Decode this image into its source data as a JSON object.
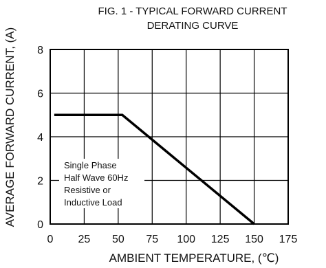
{
  "chart_data": {
    "type": "line",
    "title_lines": [
      "FIG. 1 - TYPICAL FORWARD CURRENT",
      "DERATING CURVE"
    ],
    "xlabel": "AMBIENT TEMPERATURE, (℃)",
    "ylabel": "AVERAGE FORWARD CURRENT, (A)",
    "xlim": [
      0,
      175
    ],
    "ylim": [
      0,
      8
    ],
    "x_ticks": [
      0,
      25,
      50,
      75,
      100,
      125,
      150,
      175
    ],
    "y_ticks": [
      0,
      2,
      4,
      6,
      8
    ],
    "grid": true,
    "series": [
      {
        "x": [
          3,
          53,
          150
        ],
        "y": [
          5,
          5,
          0
        ]
      }
    ],
    "annotation": [
      "Single Phase",
      "Half Wave 60Hz",
      "Resistive or",
      "Inductive Load"
    ],
    "colors": {
      "line": "#000000",
      "grid": "#000000",
      "background": "#ffffff"
    }
  }
}
